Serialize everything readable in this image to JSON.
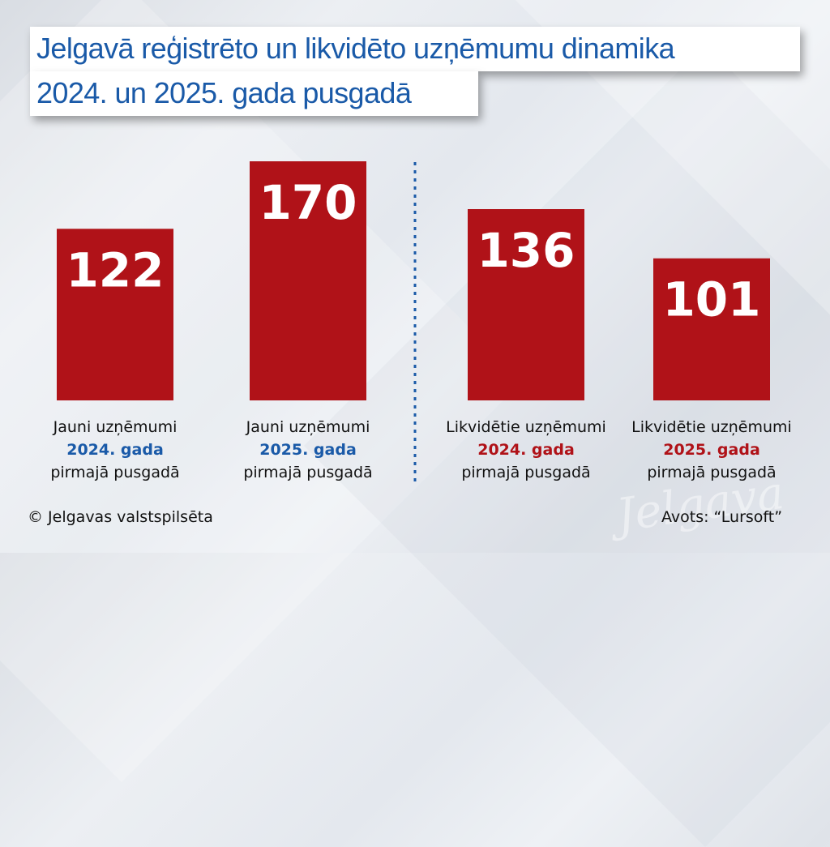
{
  "title": {
    "line1": "Jelgavā reģistrēto un likvidēto uzņēmumu dinamika",
    "line2": "2024. un 2025. gada pusgadā"
  },
  "colors": {
    "bar": "#b01218",
    "title_text": "#1a5aa8",
    "year_blue": "#1a5aa8",
    "year_red": "#b01218",
    "divider": "#1a5aa8"
  },
  "chart_data": {
    "type": "bar",
    "title": "Jelgavā reģistrēto un likvidēto uzņēmumu dinamika 2024. un 2025. gada pusgadā",
    "xlabel": "",
    "ylabel": "",
    "ylim": [
      0,
      170
    ],
    "grid": false,
    "categories": [
      "Jauni uzņēmumi 2024. gada pirmajā pusgadā",
      "Jauni uzņēmumi 2025. gada pirmajā pusgadā",
      "Likvidētie uzņēmumi 2024. gada pirmajā pusgadā",
      "Likvidētie uzņēmumi 2025. gada pirmajā pusgadā"
    ],
    "values": [
      122,
      170,
      136,
      101
    ],
    "data_labels": [
      "122",
      "170",
      "136",
      "101"
    ],
    "groups": [
      {
        "name": "Jauni uzņēmumi",
        "categories": [
          0,
          1
        ]
      },
      {
        "name": "Likvidētie uzņēmumi",
        "categories": [
          2,
          3
        ]
      }
    ]
  },
  "labels": [
    {
      "line1": "Jauni uzņēmumi",
      "year": "2024. gada",
      "line3": "pirmajā pusgadā",
      "year_color": "blue"
    },
    {
      "line1": "Jauni uzņēmumi",
      "year": "2025. gada",
      "line3": "pirmajā pusgadā",
      "year_color": "blue"
    },
    {
      "line1": "Likvidētie uzņēmumi",
      "year": "2024. gada",
      "line3": "pirmajā pusgadā",
      "year_color": "red"
    },
    {
      "line1": "Likvidētie uzņēmumi",
      "year": "2025. gada",
      "line3": "pirmajā pusgadā",
      "year_color": "red"
    }
  ],
  "footer": {
    "copyright": "© Jelgavas valstspilsēta",
    "source": "Avots: “Lursoft”"
  },
  "watermark": "Jelgava"
}
